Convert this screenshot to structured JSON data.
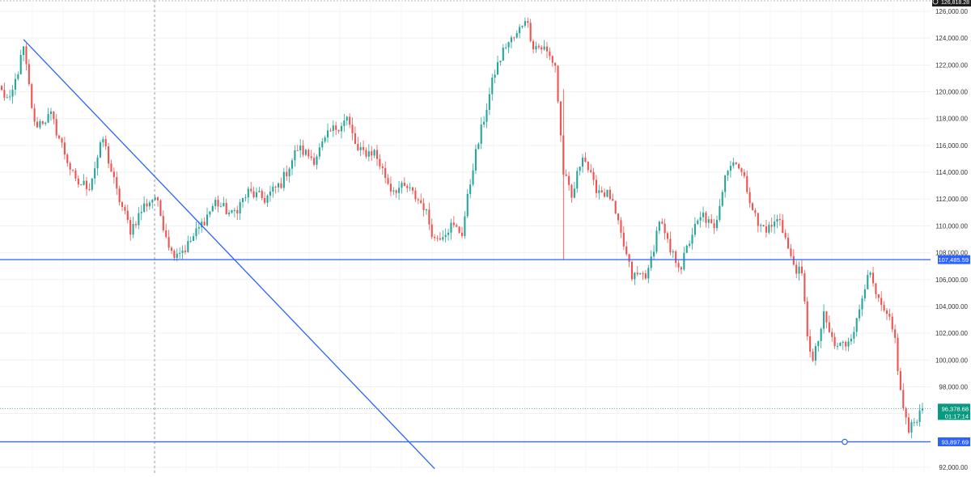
{
  "colors": {
    "up": "#26a69a",
    "down": "#ef5350",
    "line": "#2962ff",
    "grid": "#f0f0f0",
    "axis_text": "#333333",
    "label_bg": "#2962ff",
    "price_label_bg": "#089981",
    "price_line": "#089981"
  },
  "chart_data": {
    "type": "candlestick",
    "ylim": [
      92000,
      126000
    ],
    "y_ticks": [
      92000,
      94000,
      96000,
      98000,
      100000,
      102000,
      104000,
      106000,
      108000,
      110000,
      112000,
      114000,
      116000,
      118000,
      120000,
      122000,
      124000,
      126000
    ],
    "y_tick_labels": [
      "92,000.00",
      "94,000.00",
      "96,000.00",
      "98,000.00",
      "100,000.00",
      "102,000.00",
      "104,000.00",
      "106,000.00",
      "108,000.00",
      "110,000.00",
      "112,000.00",
      "114,000.00",
      "116,000.00",
      "118,000.00",
      "120,000.00",
      "122,000.00",
      "124,000.00",
      "126,000.00"
    ],
    "top_axis_label": "126,818.28",
    "horizontal_lines": [
      {
        "value": 107485.59,
        "label": "107,485.59"
      },
      {
        "value": 93897.69,
        "label": "93,897.69"
      }
    ],
    "current_price": {
      "value": 96378.68,
      "label": "96,378.68",
      "countdown": "01:17:14"
    },
    "trendline": {
      "from_bar": 8,
      "from_price": 123900,
      "to_bar": 158,
      "to_price": 91900
    },
    "close_keypoints": [
      [
        0,
        120000
      ],
      [
        3,
        119200
      ],
      [
        8,
        123200
      ],
      [
        12,
        117500
      ],
      [
        18,
        118200
      ],
      [
        22,
        116000
      ],
      [
        27,
        113200
      ],
      [
        32,
        113000
      ],
      [
        37,
        116500
      ],
      [
        42,
        112500
      ],
      [
        47,
        109700
      ],
      [
        52,
        111500
      ],
      [
        56,
        112200
      ],
      [
        62,
        108000
      ],
      [
        67,
        108300
      ],
      [
        72,
        109800
      ],
      [
        78,
        111800
      ],
      [
        84,
        110800
      ],
      [
        90,
        112500
      ],
      [
        96,
        112000
      ],
      [
        102,
        113200
      ],
      [
        108,
        115800
      ],
      [
        114,
        115000
      ],
      [
        120,
        117000
      ],
      [
        126,
        118000
      ],
      [
        130,
        115500
      ],
      [
        136,
        115500
      ],
      [
        142,
        112800
      ],
      [
        148,
        112800
      ],
      [
        154,
        111500
      ],
      [
        158,
        109000
      ],
      [
        164,
        110000
      ],
      [
        168,
        109500
      ],
      [
        172,
        114500
      ],
      [
        176,
        118000
      ],
      [
        180,
        121500
      ],
      [
        184,
        123500
      ],
      [
        188,
        124200
      ],
      [
        191,
        125600
      ],
      [
        194,
        123500
      ],
      [
        198,
        123200
      ],
      [
        202,
        122000
      ],
      [
        205,
        114000
      ],
      [
        208,
        112000
      ],
      [
        212,
        115500
      ],
      [
        216,
        113000
      ],
      [
        222,
        112200
      ],
      [
        227,
        108500
      ],
      [
        230,
        106200
      ],
      [
        236,
        106500
      ],
      [
        240,
        110500
      ],
      [
        244,
        108000
      ],
      [
        248,
        107000
      ],
      [
        252,
        109500
      ],
      [
        256,
        110800
      ],
      [
        260,
        109600
      ],
      [
        264,
        114000
      ],
      [
        268,
        115000
      ],
      [
        272,
        112800
      ],
      [
        276,
        110000
      ],
      [
        280,
        109800
      ],
      [
        284,
        110600
      ],
      [
        288,
        107500
      ],
      [
        292,
        106200
      ],
      [
        294,
        102000
      ],
      [
        296,
        99800
      ],
      [
        300,
        103200
      ],
      [
        304,
        101000
      ],
      [
        308,
        101200
      ],
      [
        312,
        102800
      ],
      [
        316,
        106700
      ],
      [
        320,
        104200
      ],
      [
        324,
        102800
      ],
      [
        326,
        101500
      ],
      [
        328,
        97500
      ],
      [
        331,
        94600
      ],
      [
        334,
        95800
      ],
      [
        336,
        96378.68
      ]
    ],
    "bar_count": 337
  }
}
